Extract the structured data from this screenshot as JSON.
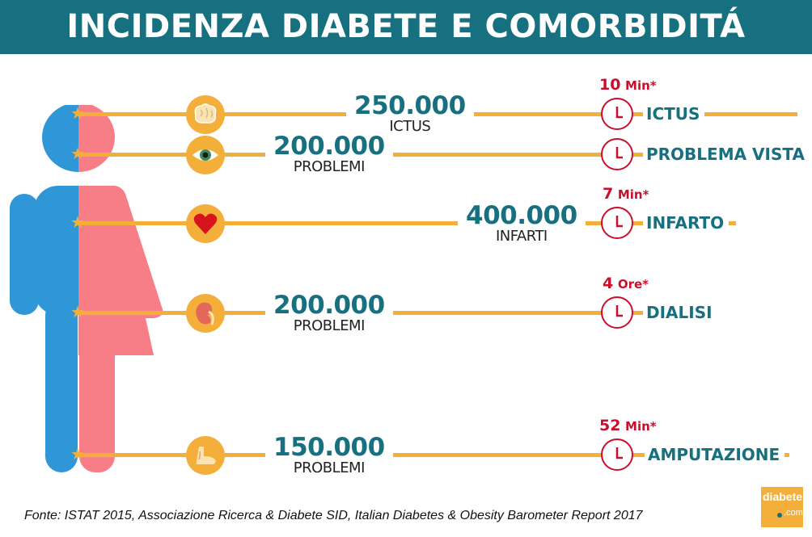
{
  "title": "INCIDENZA DIABETE E COMORBIDITÁ",
  "rows": [
    {
      "organ": "brain-icon",
      "number": "250.000",
      "label": "ICTUS",
      "time_value": "10",
      "time_unit": "Min",
      "asterisk": "*",
      "condition": "ICTUS"
    },
    {
      "organ": "eye-icon",
      "number": "200.000",
      "label": "PROBLEMI",
      "time_value": "",
      "time_unit": "",
      "asterisk": "",
      "condition": "PROBLEMA VISTA"
    },
    {
      "organ": "heart-icon",
      "number": "400.000",
      "label": "INFARTI",
      "time_value": "7",
      "time_unit": "Min",
      "asterisk": "*",
      "condition": "INFARTO"
    },
    {
      "organ": "kidney-icon",
      "number": "200.000",
      "label": "PROBLEMI",
      "time_value": "4",
      "time_unit": "Ore",
      "asterisk": "*",
      "condition": "DIALISI"
    },
    {
      "organ": "foot-icon",
      "number": "150.000",
      "label": "PROBLEMI",
      "time_value": "52",
      "time_unit": "Min",
      "asterisk": "*",
      "condition": "AMPUTAZIONE"
    }
  ],
  "footer": "Fonte: ISTAT 2015, Associazione Ricerca & Diabete SID, Italian Diabetes & Obesity Barometer Report 2017",
  "logo": {
    "text": "diabete",
    "suffix": ".com"
  },
  "colors": {
    "teal": "#17707f",
    "orange": "#f4ae3a",
    "red": "#c8102e",
    "blue": "#2f97d8",
    "pink": "#f77d86"
  }
}
